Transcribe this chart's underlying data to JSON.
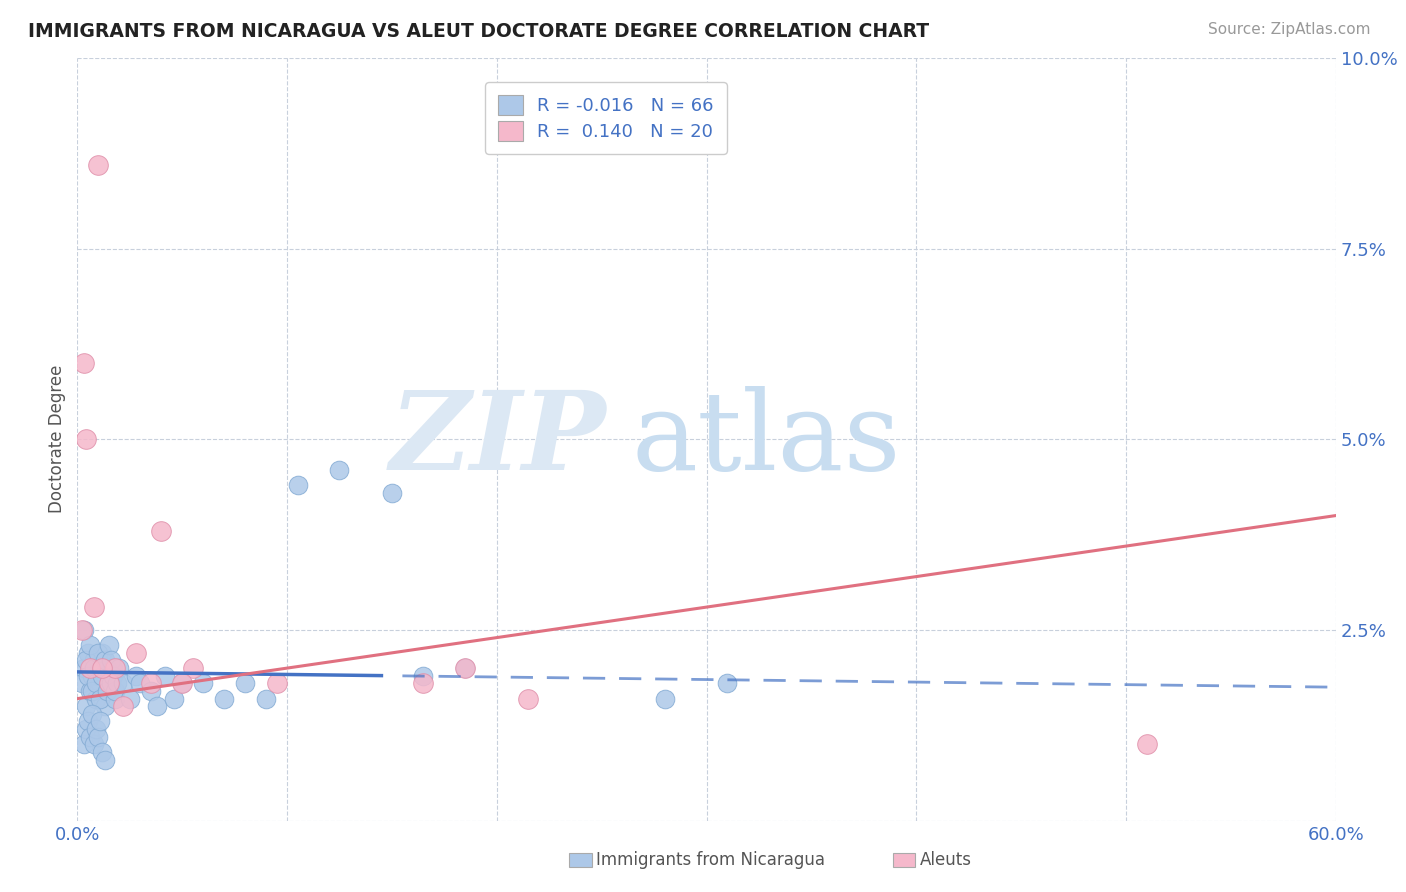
{
  "title": "IMMIGRANTS FROM NICARAGUA VS ALEUT DOCTORATE DEGREE CORRELATION CHART",
  "source": "Source: ZipAtlas.com",
  "ylabel": "Doctorate Degree",
  "xlim": [
    0,
    0.6
  ],
  "ylim": [
    0,
    0.1
  ],
  "yticks": [
    0.0,
    0.025,
    0.05,
    0.075,
    0.1
  ],
  "ytick_labels": [
    "",
    "2.5%",
    "5.0%",
    "7.5%",
    "10.0%"
  ],
  "xticks": [
    0.0,
    0.1,
    0.2,
    0.3,
    0.4,
    0.5,
    0.6
  ],
  "xtick_labels": [
    "0.0%",
    "",
    "",
    "",
    "",
    "",
    "60.0%"
  ],
  "blue_R": -0.016,
  "blue_N": 66,
  "pink_R": 0.14,
  "pink_N": 20,
  "blue_color": "#adc8e8",
  "pink_color": "#f5b8cb",
  "blue_edge": "#85acd4",
  "pink_edge": "#e090aa",
  "trend_blue": "#4472c4",
  "trend_pink": "#e07080",
  "background": "#ffffff",
  "legend_box_color": "#4472c4",
  "blue_x": [
    0.002,
    0.003,
    0.004,
    0.005,
    0.006,
    0.007,
    0.008,
    0.009,
    0.01,
    0.011,
    0.012,
    0.013,
    0.014,
    0.015,
    0.003,
    0.004,
    0.005,
    0.006,
    0.007,
    0.008,
    0.009,
    0.01,
    0.011,
    0.012,
    0.013,
    0.014,
    0.015,
    0.016,
    0.017,
    0.018,
    0.003,
    0.004,
    0.005,
    0.006,
    0.007,
    0.008,
    0.009,
    0.01,
    0.011,
    0.012,
    0.013,
    0.016,
    0.017,
    0.018,
    0.019,
    0.02,
    0.022,
    0.025,
    0.028,
    0.03,
    0.035,
    0.038,
    0.042,
    0.046,
    0.05,
    0.06,
    0.07,
    0.08,
    0.09,
    0.105,
    0.125,
    0.15,
    0.165,
    0.185,
    0.28,
    0.31
  ],
  "blue_y": [
    0.018,
    0.02,
    0.015,
    0.022,
    0.017,
    0.019,
    0.021,
    0.016,
    0.02,
    0.018,
    0.022,
    0.015,
    0.02,
    0.018,
    0.025,
    0.021,
    0.019,
    0.023,
    0.017,
    0.02,
    0.018,
    0.022,
    0.016,
    0.019,
    0.021,
    0.017,
    0.023,
    0.018,
    0.02,
    0.016,
    0.01,
    0.012,
    0.013,
    0.011,
    0.014,
    0.01,
    0.012,
    0.011,
    0.013,
    0.009,
    0.008,
    0.021,
    0.019,
    0.017,
    0.018,
    0.02,
    0.018,
    0.016,
    0.019,
    0.018,
    0.017,
    0.015,
    0.019,
    0.016,
    0.018,
    0.018,
    0.016,
    0.018,
    0.016,
    0.044,
    0.046,
    0.043,
    0.019,
    0.02,
    0.016,
    0.018
  ],
  "pink_x": [
    0.002,
    0.004,
    0.006,
    0.008,
    0.01,
    0.015,
    0.018,
    0.022,
    0.028,
    0.035,
    0.04,
    0.055,
    0.095,
    0.165,
    0.185,
    0.215,
    0.51,
    0.003,
    0.012,
    0.05
  ],
  "pink_y": [
    0.025,
    0.05,
    0.02,
    0.028,
    0.086,
    0.018,
    0.02,
    0.015,
    0.022,
    0.018,
    0.038,
    0.02,
    0.018,
    0.018,
    0.02,
    0.016,
    0.01,
    0.06,
    0.02,
    0.018
  ],
  "trend_blue_x0": 0.0,
  "trend_blue_x_solid_end": 0.145,
  "trend_blue_x_dash_start": 0.155,
  "trend_blue_x1": 0.6,
  "trend_blue_y0": 0.0195,
  "trend_blue_y1": 0.0175,
  "trend_pink_x0": 0.0,
  "trend_pink_x1": 0.6,
  "trend_pink_y0": 0.016,
  "trend_pink_y1": 0.04
}
